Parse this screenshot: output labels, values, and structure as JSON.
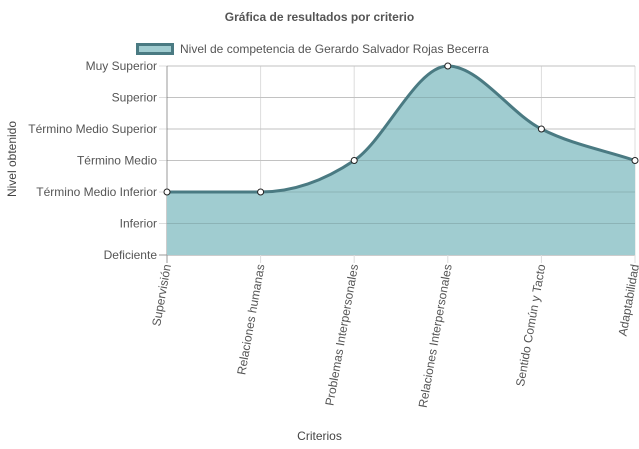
{
  "chart_data": {
    "type": "area",
    "title": "Gráfica de resultados por criterio",
    "xlabel": "Criterios",
    "ylabel": "Nivel obtenido",
    "y_levels": [
      "Deficiente",
      "Inferior",
      "Término Medio Inferior",
      "Término Medio",
      "Término Medio Superior",
      "Superior",
      "Muy Superior"
    ],
    "ylim": [
      0,
      6
    ],
    "categories": [
      "Supervisión",
      "Relaciones humanas",
      "Problemas Interpersonales",
      "Relaciones Interpersonales",
      "Sentido Común y Tacto",
      "Adaptabilidad"
    ],
    "series": [
      {
        "name": "Nivel de competencia de Gerardo Salvador Rojas Becerra",
        "values": [
          2,
          2,
          3,
          6,
          4,
          3
        ]
      }
    ],
    "colors": {
      "fill": "#a0ccd0",
      "line": "#4a7a82",
      "grid": "#dddddd",
      "axis": "#999999"
    },
    "grid": true,
    "legend": "top"
  }
}
